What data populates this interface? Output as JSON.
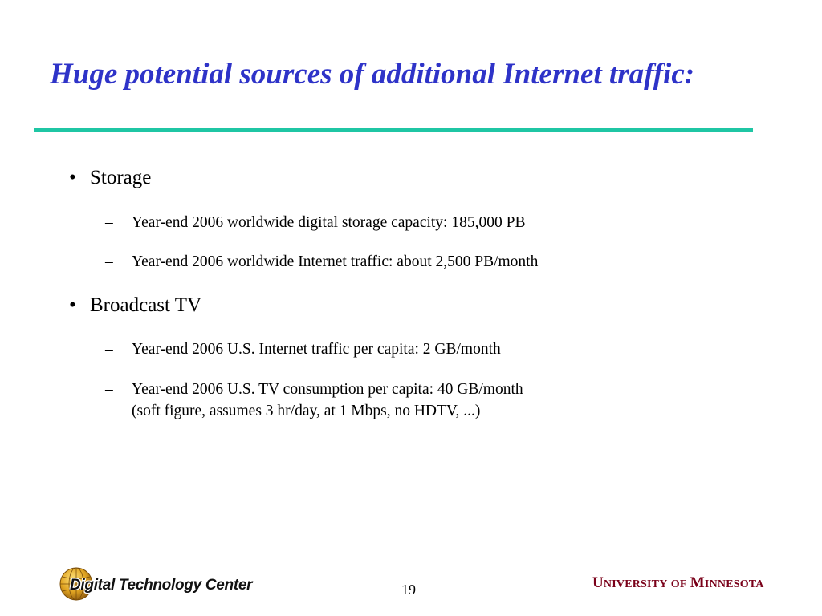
{
  "slide": {
    "title": "Huge potential sources of additional Internet traffic:",
    "page_number": "19",
    "accent_color": "#2e33c8",
    "rule_color": "#1fc6a4"
  },
  "bullets": [
    {
      "label": "Storage",
      "subitems": [
        {
          "text": "Year-end 2006 worldwide digital storage capacity: 185,000 PB"
        },
        {
          "text": "Year-end 2006 worldwide Internet traffic: about 2,500 PB/month"
        }
      ]
    },
    {
      "label": "Broadcast TV",
      "subitems": [
        {
          "text": "Year-end 2006 U.S. Internet traffic per capita:  2 GB/month"
        },
        {
          "text": "Year-end 2006 U.S. TV consumption per capita: 40 GB/month",
          "text2": "(soft figure, assumes 3 hr/day, at 1 Mbps, no HDTV, ...)"
        }
      ]
    }
  ],
  "footer": {
    "left_logo_text": "Digital Technology Center",
    "left_logo_icon": "globe-icon",
    "right_logo": {
      "u": "U",
      "niversity": "NIVERSITY",
      "of": "OF",
      "m": "M",
      "innesota": "INNESOTA"
    }
  }
}
